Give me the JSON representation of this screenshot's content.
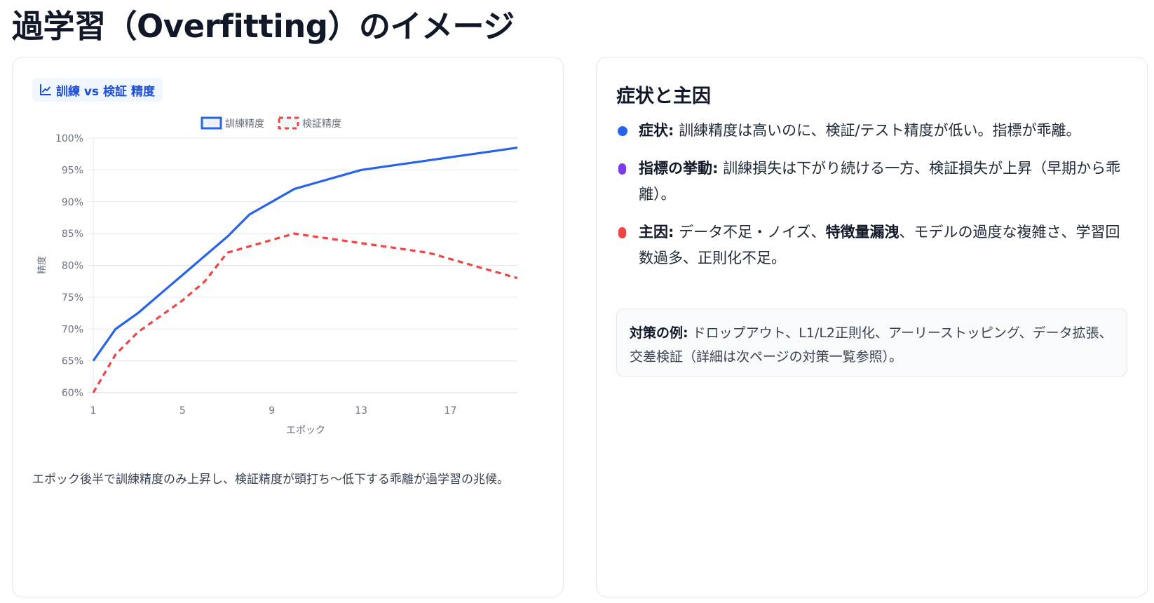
{
  "page": {
    "title": "過学習（Overfitting）のイメージ"
  },
  "chart_card": {
    "chip_icon": "line-chart-icon",
    "chip_label": "訓練 vs 検証 精度",
    "caption": "エポック後半で訓練精度のみ上昇し、検証精度が頭打ち〜低下する乖離が過学習の兆候。"
  },
  "chart_data": {
    "type": "line",
    "title": "訓練 vs 検証 精度",
    "xlabel": "エポック",
    "ylabel": "精度",
    "x": [
      1,
      2,
      3,
      4,
      5,
      6,
      7,
      8,
      9,
      10,
      11,
      12,
      13,
      14,
      15,
      16,
      17,
      18,
      19,
      20
    ],
    "x_tick_labels": [
      "1",
      "5",
      "9",
      "13",
      "17"
    ],
    "y_tick_labels": [
      "60%",
      "65%",
      "70%",
      "75%",
      "80%",
      "85%",
      "90%",
      "95%",
      "100%"
    ],
    "ylim": [
      60,
      100
    ],
    "grid": true,
    "legend_position": "top",
    "series": [
      {
        "name": "訓練精度",
        "color": "#2563eb",
        "style": "solid",
        "values": [
          65,
          70,
          72.5,
          75.5,
          78.5,
          81.5,
          84.5,
          88,
          90,
          92,
          93,
          94,
          95,
          95.5,
          96,
          96.5,
          97,
          97.5,
          98,
          98.5
        ]
      },
      {
        "name": "検証精度",
        "color": "#ef4444",
        "style": "dashed",
        "values": [
          60,
          66,
          69.5,
          72,
          74.5,
          77.5,
          82,
          83,
          84,
          85,
          84.5,
          84,
          83.5,
          83,
          82.5,
          82,
          81,
          80,
          79,
          78
        ]
      }
    ]
  },
  "info_card": {
    "title": "症状と主因",
    "bullets": [
      {
        "color": "#2563eb",
        "label": "症状:",
        "text": " 訓練精度は高いのに、検証/テスト精度が低い。指標が乖離。"
      },
      {
        "color": "#7c3aed",
        "label": "指標の挙動:",
        "text": " 訓練損失は下がり続ける一方、検証損失が上昇（早期から乖離）。"
      },
      {
        "color": "#ef4444",
        "label": "主因:",
        "text_before": " データ不足・ノイズ、",
        "bold_mid": "特徴量漏洩",
        "text_after": "、モデルの過度な複雑さ、学習回数過多、正則化不足。"
      }
    ],
    "note": {
      "label": "対策の例:",
      "text": " ドロップアウト、L1/L2正則化、アーリーストッピング、データ拡張、交差検証（詳細は次ページの対策一覧参照）。"
    }
  }
}
